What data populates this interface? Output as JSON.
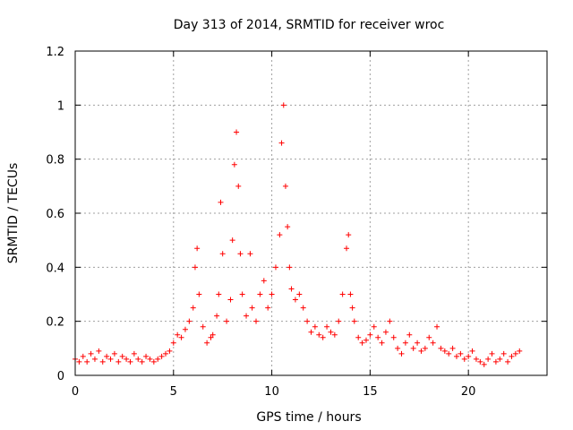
{
  "chart_data": {
    "type": "scatter",
    "title": "Day 313 of 2014, SRMTID for receiver wroc",
    "xlabel": "GPS time / hours",
    "ylabel": "SRMTID / TECUs",
    "xlim": [
      0,
      24
    ],
    "ylim": [
      0,
      1.2
    ],
    "x_ticks": [
      0,
      5,
      10,
      15,
      20
    ],
    "x_tick_labels": [
      "0",
      "5",
      "10",
      "15",
      "20"
    ],
    "y_ticks": [
      0,
      0.2,
      0.4,
      0.6,
      0.8,
      1.0,
      1.2
    ],
    "y_tick_labels": [
      "0",
      "0.2",
      "0.4",
      "0.6",
      "0.8",
      "1",
      "1.2"
    ],
    "grid": true,
    "marker": "+",
    "color": "#ff0000",
    "series": [
      {
        "name": "SRMTID",
        "x": [
          0.0,
          0.2,
          0.4,
          0.6,
          0.8,
          1.0,
          1.2,
          1.4,
          1.6,
          1.8,
          2.0,
          2.2,
          2.4,
          2.6,
          2.8,
          3.0,
          3.2,
          3.4,
          3.6,
          3.8,
          4.0,
          4.2,
          4.4,
          4.6,
          4.8,
          5.0,
          5.2,
          5.4,
          5.6,
          5.8,
          6.0,
          6.1,
          6.2,
          6.3,
          6.5,
          6.7,
          6.9,
          7.0,
          7.2,
          7.3,
          7.4,
          7.5,
          7.7,
          7.9,
          8.0,
          8.1,
          8.2,
          8.3,
          8.4,
          8.5,
          8.7,
          8.9,
          9.0,
          9.2,
          9.4,
          9.6,
          9.8,
          10.0,
          10.2,
          10.4,
          10.5,
          10.6,
          10.7,
          10.8,
          10.9,
          11.0,
          11.2,
          11.4,
          11.6,
          11.8,
          12.0,
          12.2,
          12.4,
          12.6,
          12.8,
          13.0,
          13.2,
          13.4,
          13.6,
          13.8,
          13.9,
          14.0,
          14.1,
          14.2,
          14.4,
          14.6,
          14.8,
          15.0,
          15.2,
          15.4,
          15.6,
          15.8,
          16.0,
          16.2,
          16.4,
          16.6,
          16.8,
          17.0,
          17.2,
          17.4,
          17.6,
          17.8,
          18.0,
          18.2,
          18.4,
          18.6,
          18.8,
          19.0,
          19.2,
          19.4,
          19.6,
          19.8,
          20.0,
          20.2,
          20.4,
          20.6,
          20.8,
          21.0,
          21.2,
          21.4,
          21.6,
          21.8,
          22.0,
          22.2,
          22.4,
          22.6
        ],
        "y": [
          0.06,
          0.05,
          0.07,
          0.05,
          0.08,
          0.06,
          0.09,
          0.05,
          0.07,
          0.06,
          0.08,
          0.05,
          0.07,
          0.06,
          0.05,
          0.08,
          0.06,
          0.05,
          0.07,
          0.06,
          0.05,
          0.06,
          0.07,
          0.08,
          0.09,
          0.12,
          0.15,
          0.14,
          0.17,
          0.2,
          0.25,
          0.4,
          0.47,
          0.3,
          0.18,
          0.12,
          0.14,
          0.15,
          0.22,
          0.3,
          0.64,
          0.45,
          0.2,
          0.28,
          0.5,
          0.78,
          0.9,
          0.7,
          0.45,
          0.3,
          0.22,
          0.45,
          0.25,
          0.2,
          0.3,
          0.35,
          0.25,
          0.3,
          0.4,
          0.52,
          0.86,
          1.0,
          0.7,
          0.55,
          0.4,
          0.32,
          0.28,
          0.3,
          0.25,
          0.2,
          0.16,
          0.18,
          0.15,
          0.14,
          0.18,
          0.16,
          0.15,
          0.2,
          0.3,
          0.47,
          0.52,
          0.3,
          0.25,
          0.2,
          0.14,
          0.12,
          0.13,
          0.15,
          0.18,
          0.14,
          0.12,
          0.16,
          0.2,
          0.14,
          0.1,
          0.08,
          0.12,
          0.15,
          0.1,
          0.12,
          0.09,
          0.1,
          0.14,
          0.12,
          0.18,
          0.1,
          0.09,
          0.08,
          0.1,
          0.07,
          0.08,
          0.06,
          0.07,
          0.09,
          0.06,
          0.05,
          0.04,
          0.06,
          0.08,
          0.05,
          0.06,
          0.08,
          0.05,
          0.07,
          0.08,
          0.09
        ]
      }
    ]
  }
}
